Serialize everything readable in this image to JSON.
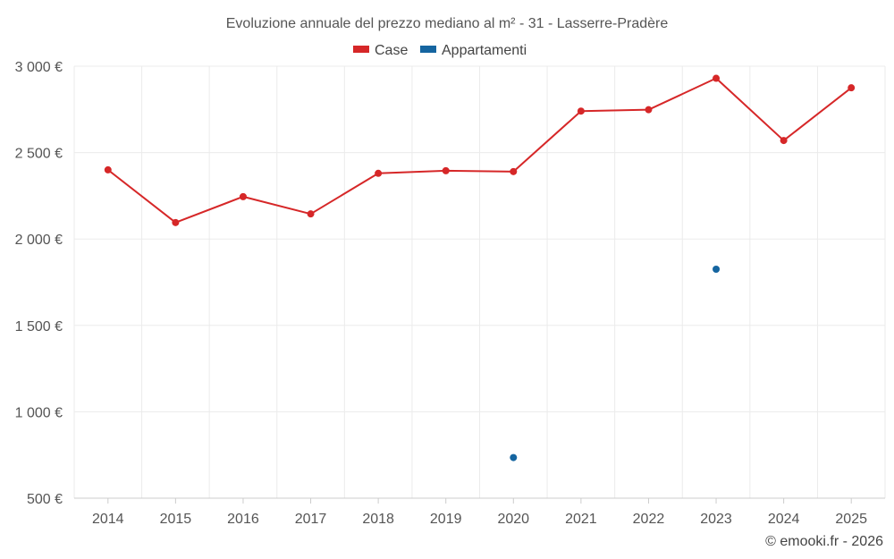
{
  "chart_data": {
    "type": "line",
    "title": "Evoluzione annuale del prezzo mediano al m² - 31 - Lasserre-Pradère",
    "categories": [
      "2014",
      "2015",
      "2016",
      "2017",
      "2018",
      "2019",
      "2020",
      "2021",
      "2022",
      "2023",
      "2024",
      "2025"
    ],
    "ylim": [
      500,
      3000
    ],
    "yticks": [
      500,
      1000,
      1500,
      2000,
      2500,
      3000
    ],
    "ytick_labels": [
      "500 €",
      "1 000 €",
      "1 500 €",
      "2 000 €",
      "2 500 €",
      "3 000 €"
    ],
    "series": [
      {
        "name": "Case",
        "color": "#d62728",
        "values": [
          2400,
          2095,
          2245,
          2145,
          2380,
          2395,
          2390,
          2740,
          2748,
          2930,
          2570,
          2875
        ]
      },
      {
        "name": "Appartamenti",
        "color": "#1565a0",
        "values": [
          null,
          null,
          null,
          null,
          null,
          null,
          735,
          null,
          null,
          1825,
          null,
          null
        ]
      }
    ],
    "legend_position": "top-center",
    "grid": true
  },
  "credit": "© emooki.fr - 2026"
}
